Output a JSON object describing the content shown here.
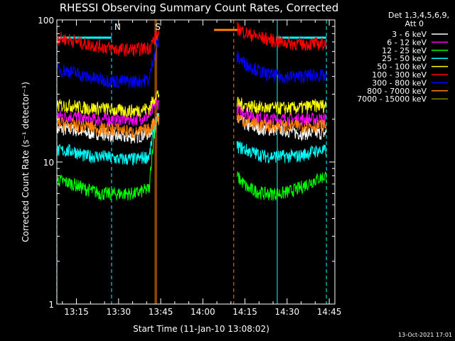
{
  "chart_data": {
    "type": "line",
    "title": "RHESSI Observing Summary Count Rates, Corrected",
    "xlabel": "Start Time (11-Jan-10 13:08:02)",
    "ylabel": "Corrected Count Rate (s⁻¹ detector⁻¹)",
    "y_scale": "log",
    "ylim": [
      1,
      100
    ],
    "xlim": [
      "13:08:02",
      "14:47:00"
    ],
    "x_unit": "minutes after 13:00",
    "x_ticks": [
      "13:15",
      "13:30",
      "13:45",
      "14:00",
      "14:15",
      "14:30",
      "14:45"
    ],
    "y_ticks": [
      "1",
      "10",
      "100"
    ],
    "legend_header": [
      "Det 1,3,4,5,6,9,",
      "Att 0"
    ],
    "legend_placement": "right",
    "footer_date": "13-Oct-2021 17:01",
    "markers": [
      {
        "label": "N",
        "x": 27.5,
        "color": "#00ffff"
      },
      {
        "label": "S",
        "x": 42.0,
        "color": "#ff8000"
      }
    ],
    "night_bars": [
      {
        "x_start": 8.0,
        "x_end": 27.5,
        "y": 75,
        "color": "#00ffff"
      },
      {
        "x_start": 64.0,
        "x_end": 73.5,
        "y": 85,
        "color": "#ff8000"
      },
      {
        "x_start": 86.5,
        "x_end": 104.0,
        "y": 75,
        "color": "#00ffff"
      }
    ],
    "vlines": [
      {
        "x": 8.0,
        "color": "#00ffff",
        "style": "dashed"
      },
      {
        "x": 27.5,
        "color": "#00ffff",
        "style": "dashed"
      },
      {
        "x": 86.5,
        "color": "#00ffff",
        "style": "solid"
      },
      {
        "x": 104.0,
        "color": "#00ffff",
        "style": "dashed"
      },
      {
        "x": 43.0,
        "color": "#ff8000",
        "style": "solid"
      },
      {
        "x": 43.5,
        "color": "#ff8000",
        "style": "solid"
      },
      {
        "x": 71.0,
        "color": "#ff8000",
        "style": "dashed"
      }
    ],
    "gap": {
      "x_start": 44.5,
      "x_end": 72.0
    },
    "series": [
      {
        "name": "3 - 6 keV",
        "color": "#ffffff",
        "x": [
          8,
          14,
          18,
          24,
          30,
          36,
          41,
          43.5,
          72,
          76,
          82,
          88,
          94,
          100,
          104
        ],
        "y": [
          17,
          17,
          16,
          16,
          15,
          15,
          16,
          20,
          20,
          18,
          17,
          17,
          16,
          16,
          16
        ]
      },
      {
        "name": "6 - 12 keV",
        "color": "#ff00ff",
        "x": [
          8,
          14,
          18,
          24,
          30,
          36,
          41,
          43.5,
          72,
          76,
          82,
          88,
          94,
          100,
          104
        ],
        "y": [
          21,
          21,
          20,
          20,
          20,
          20,
          21,
          26,
          24,
          22,
          20,
          20,
          20,
          20,
          20
        ]
      },
      {
        "name": "12 - 25 keV",
        "color": "#00ff00",
        "x": [
          8,
          14,
          18,
          24,
          30,
          36,
          41,
          43.5,
          72,
          76,
          82,
          88,
          94,
          100,
          104
        ],
        "y": [
          7.5,
          7,
          6.5,
          6,
          6,
          6,
          6.5,
          20,
          8,
          6.5,
          6,
          6,
          6.5,
          7.5,
          8
        ]
      },
      {
        "name": "25 - 50 keV",
        "color": "#00ffff",
        "x": [
          8,
          14,
          18,
          24,
          30,
          36,
          41,
          43.5,
          72,
          76,
          82,
          88,
          94,
          100,
          104
        ],
        "y": [
          12,
          12,
          11,
          11,
          10.5,
          10.5,
          11,
          20,
          13,
          12,
          11,
          11,
          11,
          12,
          12
        ]
      },
      {
        "name": "50 - 100 keV",
        "color": "#ffff00",
        "x": [
          8,
          14,
          18,
          24,
          30,
          36,
          41,
          43.5,
          72,
          76,
          82,
          88,
          94,
          100,
          104
        ],
        "y": [
          25,
          25,
          24,
          24,
          23,
          23,
          24,
          30,
          26,
          25,
          24,
          24,
          24,
          25,
          25
        ]
      },
      {
        "name": "100 - 300 keV",
        "color": "#ff0000",
        "x": [
          8,
          14,
          18,
          24,
          30,
          36,
          41,
          43.5,
          72,
          76,
          82,
          88,
          94,
          100,
          104
        ],
        "y": [
          75,
          72,
          68,
          65,
          62,
          62,
          64,
          78,
          88,
          80,
          74,
          70,
          68,
          68,
          68
        ]
      },
      {
        "name": "300 - 800 keV",
        "color": "#0000ff",
        "x": [
          8,
          14,
          18,
          24,
          30,
          36,
          41,
          43.5,
          72,
          76,
          82,
          88,
          94,
          100,
          104
        ],
        "y": [
          45,
          43,
          40,
          38,
          37,
          37,
          38,
          68,
          55,
          48,
          42,
          40,
          40,
          41,
          40
        ]
      },
      {
        "name": "800 - 7000 keV",
        "color": "#ff8000",
        "x": [
          8,
          14,
          18,
          24,
          30,
          36,
          41,
          43.5,
          72,
          76,
          82,
          88,
          94,
          100,
          104
        ],
        "y": [
          19,
          18,
          18,
          17,
          17,
          16,
          17,
          20,
          21,
          19,
          18,
          18,
          18,
          18,
          18
        ]
      },
      {
        "name": "7000 - 15000 keV",
        "color": "#808000",
        "x": [],
        "y": []
      }
    ]
  }
}
